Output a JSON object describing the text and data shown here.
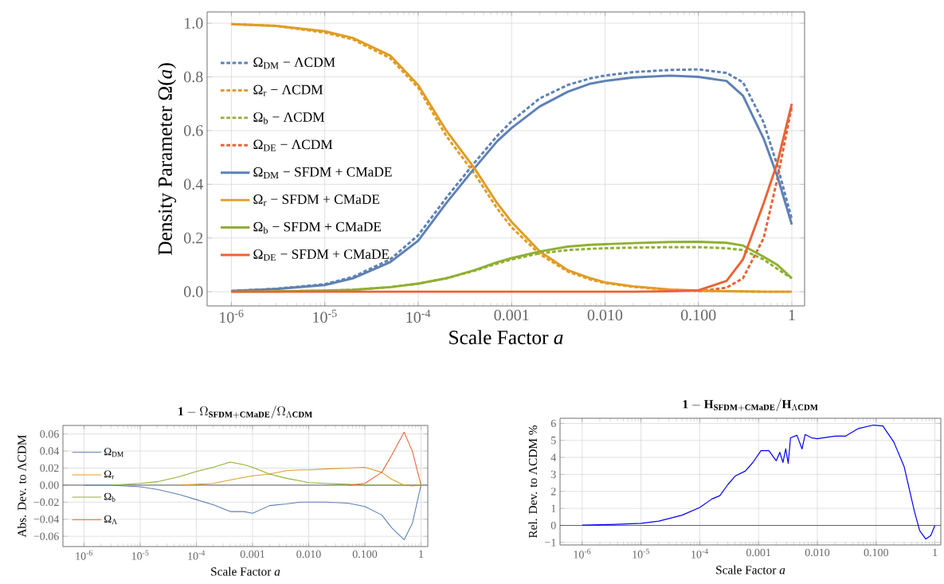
{
  "chart_data": [
    {
      "type": "line",
      "xlabel": "Scale Factor *a*",
      "ylabel": "Density Parameter Ω(*a*)",
      "log": "x",
      "grid": true,
      "legend": "left",
      "xlim": [
        5.5e-07,
        1.37
      ],
      "ylim": [
        -0.053,
        1.042
      ],
      "xticks": [
        {
          "value": 1e-06,
          "label": "10$^{-6}$"
        },
        {
          "value": 1e-05,
          "label": "10$^{-5}$"
        },
        {
          "value": 0.0001,
          "label": "10$^{-4}$"
        },
        {
          "value": 0.001,
          "label": "0.001"
        },
        {
          "value": 0.01,
          "label": "0.010"
        },
        {
          "value": 0.1,
          "label": "0.100"
        },
        1
      ],
      "yticks": [
        {
          "value": 0,
          "label": "0.0"
        },
        {
          "value": 0.2,
          "label": "0.2"
        },
        {
          "value": 0.4,
          "label": "0.4"
        },
        {
          "value": 0.6,
          "label": "0.6"
        },
        {
          "value": 0.8,
          "label": "0.8"
        },
        {
          "value": 1,
          "label": "1.0"
        }
      ],
      "x": [
        1e-06,
        3e-06,
        1e-05,
        2e-05,
        5e-05,
        0.0001,
        0.0002,
        0.0004,
        0.0007,
        0.001,
        0.002,
        0.004,
        0.007,
        0.01,
        0.02,
        0.05,
        0.1,
        0.2,
        0.3,
        0.5,
        0.7,
        1
      ],
      "series": [
        {
          "name": "Ω$_{DM}$ − ΛCDM",
          "color": "#5e81b5",
          "line_style": "dashed",
          "values": [
            0.003,
            0.011,
            0.028,
            0.055,
            0.12,
            0.21,
            0.35,
            0.48,
            0.58,
            0.635,
            0.72,
            0.77,
            0.795,
            0.805,
            0.818,
            0.826,
            0.828,
            0.815,
            0.78,
            0.63,
            0.47,
            0.27
          ]
        },
        {
          "name": "Ω$_{r}$ − ΛCDM",
          "color": "#e19c24",
          "line_style": "dashed",
          "values": [
            0.997,
            0.99,
            0.965,
            0.94,
            0.87,
            0.76,
            0.58,
            0.44,
            0.31,
            0.24,
            0.14,
            0.075,
            0.045,
            0.032,
            0.018,
            0.007,
            0.003,
            0.002,
            0.001,
            0,
            0,
            0
          ]
        },
        {
          "name": "Ω$_{b}$ − ΛCDM",
          "color": "#8fb032",
          "line_style": "dashed",
          "values": [
            null,
            0.001,
            0.004,
            0.007,
            0.017,
            0.03,
            0.05,
            0.078,
            0.105,
            0.12,
            0.143,
            0.155,
            0.16,
            0.162,
            0.164,
            0.166,
            0.166,
            0.162,
            0.155,
            0.12,
            0.085,
            0.05
          ]
        },
        {
          "name": "Ω$_{DE}$ − ΛCDM",
          "color": "#eb6235",
          "line_style": "dashed",
          "values": [
            null,
            null,
            null,
            null,
            null,
            null,
            null,
            null,
            null,
            null,
            null,
            null,
            null,
            null,
            null,
            null,
            0.002,
            0.015,
            0.05,
            0.2,
            0.42,
            0.69
          ]
        },
        {
          "name": "Ω$_{DM}$ − SFDM + CMaDE",
          "color": "#5e81b5",
          "line_style": "solid",
          "values": [
            0.003,
            0.01,
            0.025,
            0.05,
            0.11,
            0.19,
            0.33,
            0.46,
            0.56,
            0.61,
            0.69,
            0.745,
            0.775,
            0.785,
            0.798,
            0.805,
            0.8,
            0.785,
            0.73,
            0.57,
            0.43,
            0.25
          ]
        },
        {
          "name": "Ω$_{r}$ − SFDM + CMaDE",
          "color": "#e19c24",
          "line_style": "solid",
          "values": [
            0.997,
            0.99,
            0.97,
            0.945,
            0.88,
            0.77,
            0.6,
            0.46,
            0.33,
            0.26,
            0.15,
            0.08,
            0.05,
            0.035,
            0.02,
            0.008,
            0.004,
            0.002,
            0.001,
            0,
            0,
            0
          ]
        },
        {
          "name": "Ω$_{b}$ − SFDM + CMaDE",
          "color": "#8fb032",
          "line_style": "solid",
          "values": [
            0,
            0.001,
            0.004,
            0.007,
            0.017,
            0.03,
            0.05,
            0.08,
            0.11,
            0.125,
            0.15,
            0.168,
            0.175,
            0.177,
            0.181,
            0.185,
            0.186,
            0.182,
            0.172,
            0.13,
            0.1,
            0.05
          ]
        },
        {
          "name": "Ω$_{DE}$ − SFDM + CMaDE",
          "color": "#eb6235",
          "line_style": "solid",
          "values": [
            0,
            0,
            0,
            0,
            0,
            0,
            0,
            0,
            0,
            0,
            0,
            0,
            0,
            0,
            0,
            0.002,
            0.005,
            0.04,
            0.12,
            0.33,
            0.48,
            0.7
          ]
        }
      ]
    },
    {
      "type": "line",
      "title": "\\mathbf{1}-\\Omega_{\\mathbf{SFDM+CMaDE}}/\\Omega_{\\Lambda\\mathbf{CDM}}",
      "xlabel": "Scale Factor *a*",
      "ylabel": "Abs. Dev. to ΛCDM",
      "log": "x",
      "grid": true,
      "legend": "left",
      "xlim": [
        4.2e-07,
        1.32
      ],
      "ylim": [
        -0.072,
        0.07
      ],
      "xticks": [
        {
          "value": 1e-06,
          "label": "10$^{-6}$"
        },
        {
          "value": 1e-05,
          "label": "10$^{-5}$"
        },
        {
          "value": 0.0001,
          "label": "10$^{-4}$"
        },
        {
          "value": 0.001,
          "label": "0.001"
        },
        {
          "value": 0.01,
          "label": "0.010"
        },
        {
          "value": 0.1,
          "label": "0.100"
        },
        1
      ],
      "yticks": [
        {
          "value": -0.06,
          "label": "−0.06"
        },
        {
          "value": -0.04,
          "label": "−0.04"
        },
        {
          "value": -0.02,
          "label": "−0.02"
        },
        {
          "value": 0,
          "label": "0.00"
        },
        {
          "value": 0.02,
          "label": "0.02"
        },
        {
          "value": 0.04,
          "label": "0.04"
        },
        {
          "value": 0.06,
          "label": "0.06"
        }
      ],
      "ref_lines": [
        {
          "axis": "y",
          "value": 0,
          "color": "#555555"
        }
      ],
      "x": [
        1e-06,
        3e-06,
        1e-05,
        2e-05,
        5e-05,
        0.0001,
        0.0002,
        0.0004,
        0.0007,
        0.001,
        0.002,
        0.004,
        0.007,
        0.01,
        0.02,
        0.05,
        0.1,
        0.2,
        0.3,
        0.5,
        0.7,
        1
      ],
      "series": [
        {
          "name": "Ω$_{DM}$",
          "color": "#5e81b5",
          "values": [
            0,
            0,
            -0.002,
            -0.005,
            -0.011,
            -0.017,
            -0.023,
            -0.031,
            -0.031,
            -0.033,
            -0.024,
            -0.022,
            -0.02,
            -0.02,
            -0.02,
            -0.021,
            -0.025,
            -0.035,
            -0.05,
            -0.064,
            -0.045,
            0
          ]
        },
        {
          "name": "Ω$_{r}$",
          "color": "#e19c24",
          "values": [
            null,
            null,
            null,
            null,
            0,
            0.001,
            0.002,
            0.006,
            0.009,
            0.011,
            0.013,
            0.017,
            0.018,
            0.018,
            0.019,
            0.02,
            0.021,
            0.015,
            0.007,
            0,
            -0.001,
            0
          ]
        },
        {
          "name": "Ω$_{b}$",
          "color": "#8fb032",
          "values": [
            null,
            0,
            0.002,
            0.004,
            0.01,
            0.016,
            0.021,
            0.027,
            0.024,
            0.021,
            0.013,
            0.008,
            0.005,
            0.003,
            0.002,
            0.001,
            0,
            0,
            0,
            0,
            0,
            0
          ]
        },
        {
          "name": "Ω$_{Λ}$",
          "color": "#eb6235",
          "values": [
            null,
            null,
            null,
            null,
            null,
            null,
            null,
            null,
            null,
            null,
            null,
            null,
            null,
            null,
            null,
            0,
            0.002,
            0.015,
            0.035,
            0.062,
            0.04,
            0
          ]
        }
      ]
    },
    {
      "type": "line",
      "title": "\\mathbf{1}-\\mathbf{H}_{\\mathbf{SFDM+CMaDE}}/\\mathbf{H}_{\\Lambda\\mathbf{CDM}}",
      "xlabel": "Scale Factor *a*",
      "ylabel": "Rel. Dev. to ΛCDM %",
      "log": "x",
      "grid": true,
      "xlim": [
        4.2e-07,
        1.26
      ],
      "ylim": [
        -1.15,
        6.3
      ],
      "xticks": [
        {
          "value": 1e-06,
          "label": "10$^{-6}$"
        },
        {
          "value": 1e-05,
          "label": "10$^{-5}$"
        },
        {
          "value": 0.0001,
          "label": "10$^{-4}$"
        },
        {
          "value": 0.001,
          "label": "0.001"
        },
        {
          "value": 0.01,
          "label": "0.010"
        },
        {
          "value": 0.1,
          "label": "0.100"
        },
        1
      ],
      "yticks": [
        {
          "value": -1,
          "label": "−1"
        },
        0,
        1,
        2,
        3,
        4,
        5,
        6
      ],
      "ref_lines": [
        {
          "axis": "y",
          "value": 0,
          "color": "#555555"
        }
      ],
      "series": [
        {
          "color": "#0000ff",
          "x": [
            1e-06,
            3e-06,
            1e-05,
            2e-05,
            5e-05,
            0.0001,
            0.00016,
            0.00022,
            0.0003,
            0.0004,
            0.0006,
            0.0008,
            0.0011,
            0.0015,
            0.002,
            0.0023,
            0.0026,
            0.0029,
            0.0032,
            0.0035,
            0.0045,
            0.0055,
            0.0062,
            0.008,
            0.01,
            0.02,
            0.03,
            0.05,
            0.09,
            0.13,
            0.2,
            0.3,
            0.45,
            0.55,
            0.7,
            0.85,
            1
          ],
          "values": [
            0.02,
            0.05,
            0.12,
            0.25,
            0.6,
            1.05,
            1.55,
            1.75,
            2.4,
            2.9,
            3.2,
            3.7,
            4.4,
            4.4,
            3.8,
            4.3,
            3.7,
            4.5,
            3.65,
            5.15,
            5.3,
            4.5,
            5.35,
            5.15,
            5.1,
            5.25,
            5.25,
            5.7,
            5.9,
            5.85,
            4.9,
            3.45,
            0.8,
            -0.3,
            -0.8,
            -0.6,
            0
          ]
        }
      ]
    }
  ]
}
